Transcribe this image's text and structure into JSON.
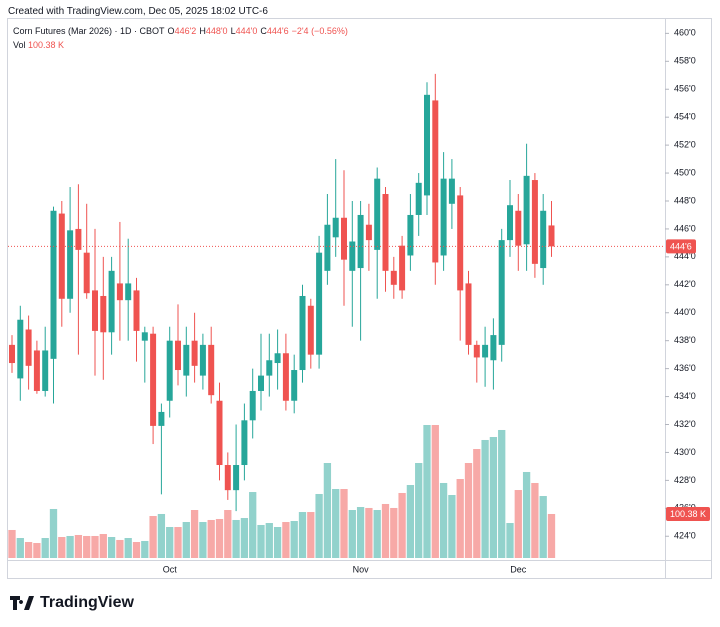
{
  "chart_data": {
    "type": "candlestick",
    "watermark": "Created with TradingView.com, Dec 05, 2025 18:02 UTC-6",
    "symbol": "Corn Futures (Mar 2026) · 1D · CBOT",
    "ohlc_header": [
      {
        "key": "O",
        "value": "446'2"
      },
      {
        "key": "H",
        "value": "448'0"
      },
      {
        "key": "L",
        "value": "444'0"
      },
      {
        "key": "C",
        "value": "444'6"
      }
    ],
    "change": "−2'4 (−0.56%)",
    "volume_title": "Vol",
    "volume_label": "100.38 K",
    "last_price_label": "444'6",
    "logo": "TradingView",
    "up_color": "#26a69a",
    "down_color": "#ef5350",
    "categories": [
      null,
      null,
      null,
      null,
      null,
      null,
      null,
      null,
      null,
      null,
      null,
      null,
      null,
      null,
      null,
      null,
      null,
      null,
      null,
      "Oct",
      null,
      null,
      null,
      null,
      null,
      null,
      null,
      null,
      null,
      null,
      null,
      null,
      null,
      null,
      null,
      null,
      null,
      null,
      null,
      null,
      null,
      null,
      "Nov",
      null,
      null,
      null,
      null,
      null,
      null,
      null,
      null,
      null,
      null,
      null,
      null,
      null,
      null,
      null,
      null,
      null,
      null,
      "Dec",
      null,
      null,
      null,
      null
    ],
    "open": [
      437.7,
      435.3,
      438.8,
      437.3,
      434.4,
      436.7,
      447.1,
      441.0,
      446.0,
      444.3,
      441.6,
      441.2,
      438.6,
      442.1,
      440.9,
      441.6,
      438.0,
      438.5,
      431.9,
      433.7,
      438.0,
      435.5,
      438.0,
      435.5,
      437.7,
      433.7,
      429.1,
      427.3,
      429.1,
      432.3,
      434.4,
      435.5,
      436.4,
      437.1,
      433.7,
      435.9,
      440.5,
      437.0,
      443.0,
      445.4,
      446.8,
      443.0,
      443.2,
      446.3,
      444.5,
      448.5,
      443.0,
      444.8,
      444.1,
      447.0,
      448.4,
      455.2,
      444.1,
      447.8,
      448.4,
      442.1,
      437.7,
      436.8,
      436.6,
      437.7,
      445.2,
      447.3,
      444.9,
      449.5,
      443.2,
      446.25
    ],
    "high": [
      438.4,
      440.5,
      439.8,
      438.0,
      439.0,
      447.6,
      448.0,
      449.0,
      449.2,
      447.8,
      446.0,
      444.0,
      444.0,
      446.5,
      445.3,
      442.5,
      439.0,
      439.0,
      433.5,
      439.0,
      440.6,
      439.0,
      440.0,
      438.5,
      439.0,
      435.0,
      430.0,
      432.0,
      433.5,
      436.0,
      438.5,
      438.5,
      438.8,
      438.5,
      437.0,
      442.0,
      441.0,
      445.5,
      448.5,
      451.0,
      450.2,
      448.0,
      448.0,
      447.8,
      450.4,
      449.0,
      444.0,
      445.5,
      448.5,
      450.0,
      456.5,
      457.1,
      451.5,
      451.0,
      449.0,
      443.0,
      438.0,
      439.0,
      439.6,
      446.0,
      449.5,
      448.5,
      452.1,
      450.0,
      448.5,
      448.0
    ],
    "low": [
      435.7,
      433.7,
      434.5,
      434.2,
      434.0,
      433.5,
      439.0,
      440.0,
      437.0,
      441.0,
      435.5,
      435.2,
      437.0,
      438.0,
      438.0,
      436.5,
      435.0,
      430.6,
      427.0,
      432.5,
      434.8,
      434.0,
      435.0,
      434.5,
      433.5,
      428.0,
      426.6,
      425.8,
      428.0,
      431.0,
      433.0,
      434.0,
      434.5,
      433.0,
      432.8,
      435.0,
      436.0,
      436.0,
      442.0,
      444.0,
      440.5,
      439.0,
      438.0,
      443.0,
      441.0,
      441.5,
      441.0,
      441.0,
      443.0,
      445.5,
      447.0,
      442.0,
      443.0,
      446.0,
      438.0,
      437.0,
      435.0,
      434.7,
      434.5,
      436.5,
      444.0,
      443.0,
      443.0,
      442.5,
      442.0,
      444.0
    ],
    "close": [
      436.4,
      439.5,
      436.2,
      434.4,
      437.3,
      447.3,
      441.0,
      445.9,
      444.5,
      441.4,
      438.7,
      438.6,
      443.0,
      440.9,
      442.1,
      438.7,
      438.6,
      431.9,
      432.9,
      438.0,
      435.9,
      437.7,
      436.2,
      437.7,
      434.1,
      429.1,
      427.3,
      429.1,
      432.3,
      434.4,
      435.5,
      436.6,
      437.1,
      433.7,
      435.9,
      441.2,
      437.0,
      444.3,
      446.3,
      446.8,
      443.8,
      445.1,
      447.0,
      445.2,
      449.6,
      443.0,
      442.0,
      441.6,
      447.0,
      449.3,
      455.6,
      443.6,
      449.6,
      449.6,
      441.6,
      437.7,
      436.8,
      437.7,
      438.4,
      445.2,
      447.7,
      444.8,
      449.8,
      443.5,
      447.3,
      444.75
    ],
    "volume": [
      63900,
      45600,
      36500,
      34200,
      45600,
      111800,
      47900,
      50200,
      52500,
      50200,
      50200,
      54700,
      47900,
      41100,
      45600,
      36500,
      38800,
      95800,
      100400,
      70700,
      70700,
      82100,
      109500,
      82100,
      86700,
      89000,
      109500,
      86700,
      91200,
      150500,
      75300,
      79800,
      70700,
      82100,
      84400,
      104900,
      104900,
      146000,
      216700,
      157400,
      157400,
      109500,
      116300,
      114100,
      109500,
      123200,
      114100,
      148300,
      166500,
      216700,
      303400,
      303400,
      171100,
      143700,
      180200,
      216700,
      248600,
      269200,
      276000,
      292000,
      79800,
      155100,
      196200,
      171100,
      141400,
      100380
    ],
    "ylim": [
      422.3,
      461.1
    ],
    "yticks": [
      {
        "value": 424,
        "label": "424'0"
      },
      {
        "value": 426,
        "label": "426'0"
      },
      {
        "value": 428,
        "label": "428'0"
      },
      {
        "value": 430,
        "label": "430'0"
      },
      {
        "value": 432,
        "label": "432'0"
      },
      {
        "value": 434,
        "label": "434'0"
      },
      {
        "value": 436,
        "label": "436'0"
      },
      {
        "value": 438,
        "label": "438'0"
      },
      {
        "value": 440,
        "label": "440'0"
      },
      {
        "value": 442,
        "label": "442'0"
      },
      {
        "value": 444,
        "label": "444'0"
      },
      {
        "value": 446,
        "label": "446'0"
      },
      {
        "value": 448,
        "label": "448'0"
      },
      {
        "value": 450,
        "label": "450'0"
      },
      {
        "value": 452,
        "label": "452'0"
      },
      {
        "value": 454,
        "label": "454'0"
      },
      {
        "value": 456,
        "label": "456'0"
      },
      {
        "value": 458,
        "label": "458'0"
      },
      {
        "value": 460,
        "label": "460'0"
      }
    ]
  }
}
